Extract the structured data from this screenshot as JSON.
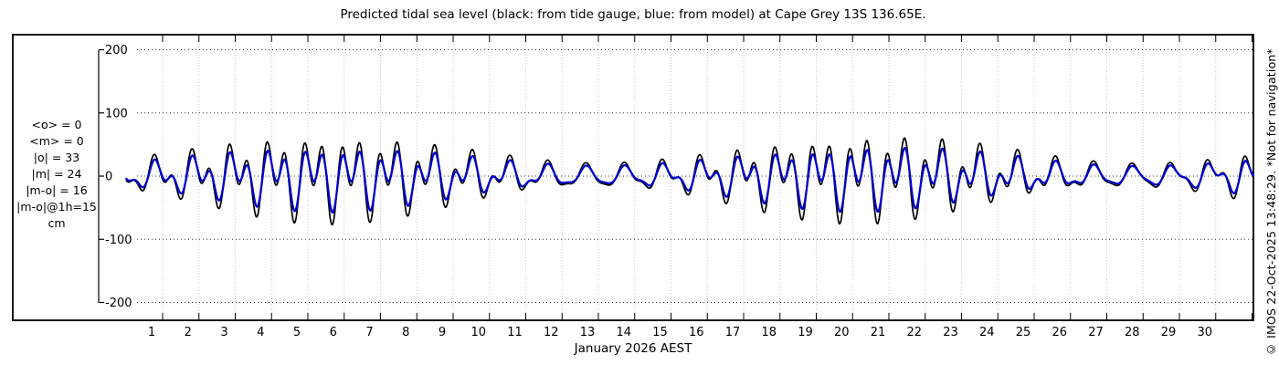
{
  "watermark": "© IMOS 22-Oct-2025 13:48:29. *Not for navigation*",
  "chart_data": {
    "type": "line",
    "title": "Predicted tidal sea level (black: from tide gauge, blue: from model) at Cape Grey 13S 136.65E.",
    "xlabel": "January 2026 AEST",
    "units": "cm",
    "ylim": [
      -200,
      200
    ],
    "y_ticks": [
      200,
      100,
      0,
      -100,
      -200
    ],
    "x_ticks": [
      1,
      2,
      3,
      4,
      5,
      6,
      7,
      8,
      9,
      10,
      11,
      12,
      13,
      14,
      15,
      16,
      17,
      18,
      19,
      20,
      21,
      22,
      23,
      24,
      25,
      26,
      27,
      28,
      29,
      30
    ],
    "x_range_days": [
      0,
      31.04
    ],
    "grid": {
      "horizontal": "black dotted at each y tick",
      "vertical": "light dotted at each day tick"
    },
    "stats": [
      "<o> = 0",
      "<m> = 0",
      "|o| = 33",
      "|m| = 24",
      "|m-o| = 16",
      "|m-o|@1h=15",
      "cm"
    ],
    "legend": [
      {
        "label": "from tide gauge",
        "color": "#000000"
      },
      {
        "label": "from model",
        "color": "#0000cd"
      }
    ],
    "envelope_summary": {
      "spring_days": [
        5.5,
        20.5
      ],
      "neap_days": [
        13.5,
        28
      ],
      "spring_peak_cm": {
        "tide_gauge": 75,
        "model": 55
      },
      "neap_peak_cm": {
        "tide_gauge": 22,
        "model": 17
      }
    },
    "series": [
      {
        "id": "observed",
        "name": "from tide gauge",
        "color": "#000000",
        "width": 1.7,
        "synthesis": {
          "sample_step_days": 0.01,
          "components": [
            {
              "period_days": 0.5175,
              "phase_days": 0.235,
              "amp_base_cm": 25,
              "amp_mod_cm": 21,
              "mod_period_days": 14.77,
              "mod_peak_day": 5.6
            },
            {
              "period_days": 1.0758,
              "phase_days": 0.83,
              "amp_base_cm": 24,
              "amp_mod_cm": 7,
              "mod_period_days": 14.77,
              "mod_peak_day": 5.6
            }
          ]
        }
      },
      {
        "id": "model",
        "name": "from model",
        "color": "#0000cd",
        "width": 2.3,
        "synthesis": {
          "sample_step_days": 0.01,
          "components": [
            {
              "period_days": 0.5175,
              "phase_days": 0.247,
              "amp_base_cm": 18,
              "amp_mod_cm": 15,
              "mod_period_days": 14.77,
              "mod_peak_day": 5.6
            },
            {
              "period_days": 1.0758,
              "phase_days": 0.842,
              "amp_base_cm": 19,
              "amp_mod_cm": 5.5,
              "mod_period_days": 14.77,
              "mod_peak_day": 5.6
            }
          ]
        }
      }
    ]
  }
}
